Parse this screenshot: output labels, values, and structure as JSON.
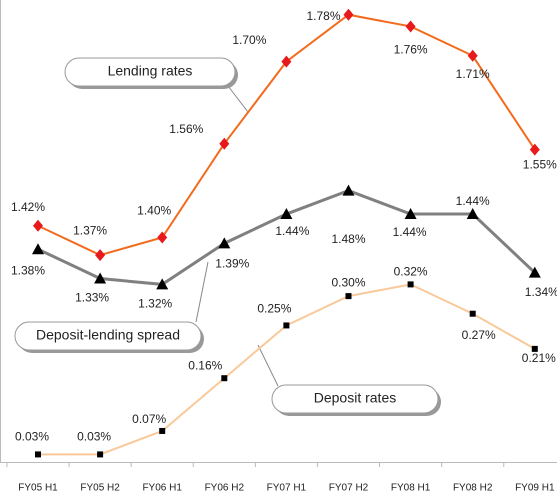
{
  "chart_data": {
    "type": "line",
    "categories": [
      "FY05 H1",
      "FY05 H2",
      "FY06 H1",
      "FY06 H2",
      "FY07 H1",
      "FY07 H2",
      "FY08 H1",
      "FY08 H2",
      "FY09 H1"
    ],
    "ylim": [
      1.0,
      1.8
    ],
    "y2lim": [
      0,
      0.8
    ],
    "series": [
      {
        "name": "Lending rates",
        "color": "#f26b1d",
        "marker": "diamond",
        "marker_color": "#e8191b",
        "values": [
          1.42,
          1.37,
          1.4,
          1.56,
          1.7,
          1.78,
          1.76,
          1.71,
          1.55
        ],
        "value_labels": [
          "1.42%",
          "1.37%",
          "1.40%",
          "1.56%",
          "1.70%",
          "1.78%",
          "1.76%",
          "1.71%",
          "1.55%"
        ]
      },
      {
        "name": "Deposit-lending spread",
        "color": "#808080",
        "marker": "triangle",
        "marker_color": "#000000",
        "values": [
          1.38,
          1.33,
          1.32,
          1.39,
          1.44,
          1.48,
          1.44,
          1.44,
          1.34
        ],
        "value_labels": [
          "1.38%",
          "1.33%",
          "1.32%",
          "1.39%",
          "1.44%",
          "1.48%",
          "1.44%",
          "1.44%",
          "1.34%"
        ]
      },
      {
        "name": "Deposit rates",
        "color": "#f9c99a",
        "marker": "square",
        "marker_color": "#000000",
        "axis": "y2",
        "values": [
          0.03,
          0.03,
          0.07,
          0.16,
          0.25,
          0.3,
          0.32,
          0.27,
          0.21
        ],
        "value_labels": [
          "0.03%",
          "0.03%",
          "0.07%",
          "0.16%",
          "0.25%",
          "0.30%",
          "0.32%",
          "0.27%",
          "0.21%"
        ]
      }
    ]
  }
}
